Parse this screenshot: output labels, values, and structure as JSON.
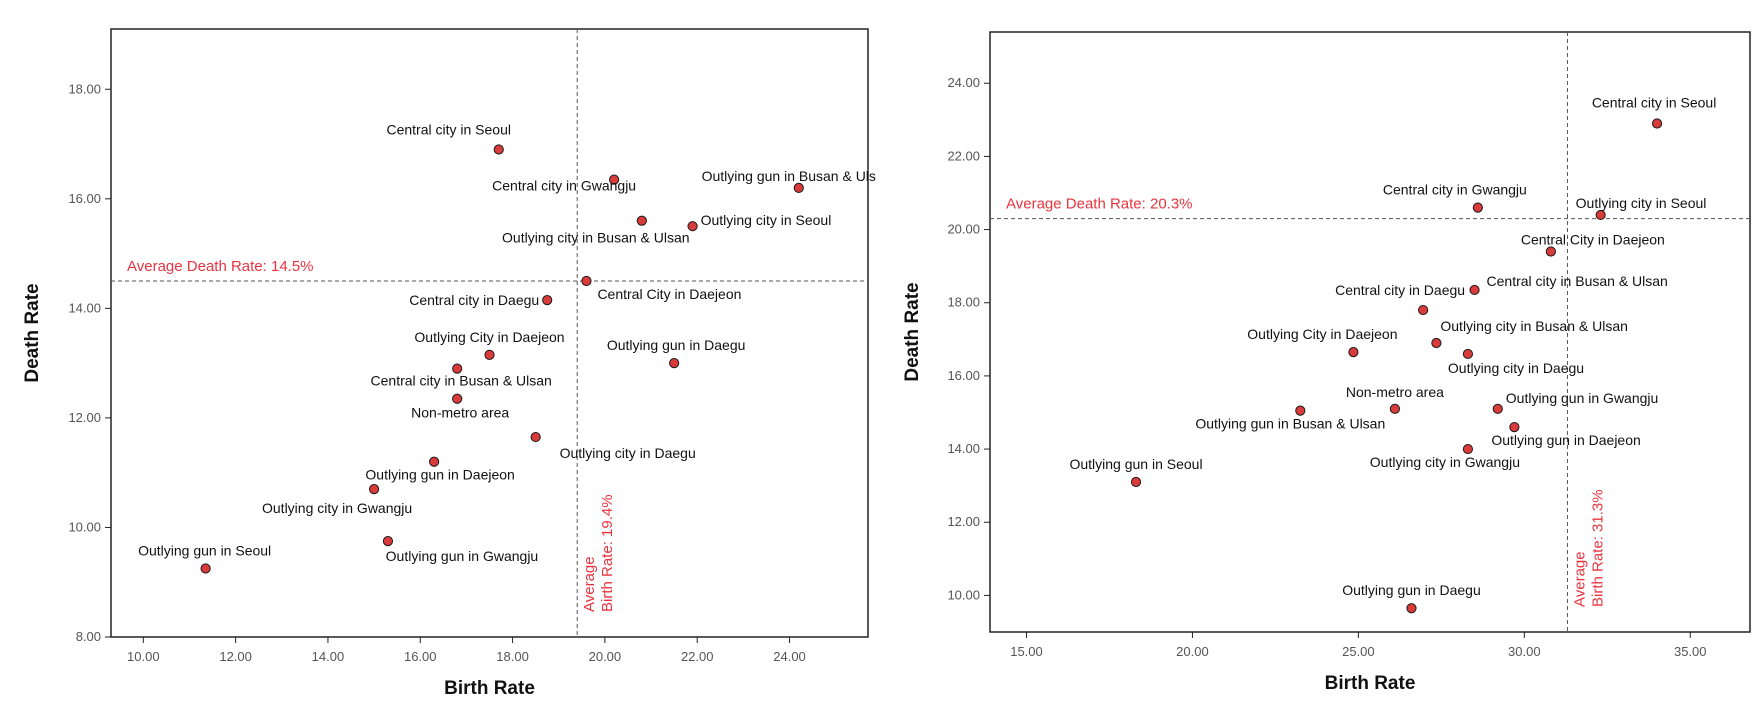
{
  "chart_data": [
    {
      "type": "scatter",
      "xlabel": "Birth Rate",
      "ylabel": "Death Rate",
      "xlim": [
        9.3,
        25.7
      ],
      "ylim": [
        8.0,
        19.1
      ],
      "xticks": [
        10.0,
        12.0,
        14.0,
        16.0,
        18.0,
        20.0,
        22.0,
        24.0
      ],
      "yticks": [
        8.0,
        10.0,
        12.0,
        14.0,
        16.0,
        18.0
      ],
      "tick_format": "0.00",
      "grid": false,
      "marker_color": "#d93a3a",
      "line_color": "#e8343f",
      "ref_x": {
        "value": 19.4,
        "label_line1": "Average",
        "label_line2": "Birth Rate: 19.4%"
      },
      "ref_y": {
        "value": 14.5,
        "label": "Average Death Rate: 14.5%"
      },
      "points": [
        {
          "label": "Central city in Seoul",
          "x": 17.7,
          "y": 16.9,
          "lx": -50,
          "ly": -15,
          "anchor": "middle"
        },
        {
          "label": "Central city in Gwangju",
          "x": 20.2,
          "y": 16.35,
          "lx": -50,
          "ly": 11,
          "anchor": "middle"
        },
        {
          "label": "Outlying gun in Busan & Uls",
          "x": 24.2,
          "y": 16.2,
          "lx": -10,
          "ly": -7,
          "anchor": "middle"
        },
        {
          "label": "Outlying city in Busan & Ulsan",
          "x": 20.8,
          "y": 15.6,
          "lx": -46,
          "ly": 22,
          "anchor": "middle"
        },
        {
          "label": "Outlying city in Seoul",
          "x": 21.9,
          "y": 15.5,
          "lx": 8,
          "ly": -1,
          "anchor": "start"
        },
        {
          "label": "Central City in Daejeon",
          "x": 19.6,
          "y": 14.5,
          "lx": 83,
          "ly": 18,
          "anchor": "middle"
        },
        {
          "label": "Central city in Daegu",
          "x": 18.75,
          "y": 14.15,
          "lx": -8,
          "ly": 5,
          "anchor": "end"
        },
        {
          "label": "Outlying City in Daejeon",
          "x": 17.5,
          "y": 13.15,
          "lx": 0,
          "ly": -13,
          "anchor": "middle"
        },
        {
          "label": "Outlying gun in Daegu",
          "x": 21.5,
          "y": 13.0,
          "lx": 2,
          "ly": -13,
          "anchor": "middle"
        },
        {
          "label": "Central city in Busan & Ulsan",
          "x": 16.8,
          "y": 12.9,
          "lx": 4,
          "ly": 17,
          "anchor": "middle"
        },
        {
          "label": "Non-metro area",
          "x": 16.8,
          "y": 12.35,
          "lx": 3,
          "ly": 19,
          "anchor": "middle"
        },
        {
          "label": "Outlying city in Daegu",
          "x": 18.5,
          "y": 11.65,
          "lx": 92,
          "ly": 21,
          "anchor": "middle"
        },
        {
          "label": "Outlying gun in Daejeon",
          "x": 16.3,
          "y": 11.2,
          "lx": 6,
          "ly": 18,
          "anchor": "middle"
        },
        {
          "label": "Outlying city in Gwangju",
          "x": 15.0,
          "y": 10.7,
          "lx": -37,
          "ly": 24,
          "anchor": "middle"
        },
        {
          "label": "Outlying gun in Seoul",
          "x": 11.35,
          "y": 9.25,
          "lx": -1,
          "ly": -13,
          "anchor": "middle"
        },
        {
          "label": "Outlying gun in Gwangju",
          "x": 15.3,
          "y": 9.75,
          "lx": 74,
          "ly": 20,
          "anchor": "middle"
        }
      ]
    },
    {
      "type": "scatter",
      "xlabel": "Birth Rate",
      "ylabel": "Death Rate",
      "xlim": [
        13.9,
        36.8
      ],
      "ylim": [
        9.0,
        25.4
      ],
      "xticks": [
        15.0,
        20.0,
        25.0,
        30.0,
        35.0
      ],
      "yticks": [
        10.0,
        12.0,
        14.0,
        16.0,
        18.0,
        20.0,
        22.0,
        24.0
      ],
      "tick_format": "0.00",
      "grid": false,
      "marker_color": "#d93a3a",
      "line_color": "#e8343f",
      "ref_x": {
        "value": 31.3,
        "label_line1": "Average",
        "label_line2": "Birth Rate: 31.3%"
      },
      "ref_y": {
        "value": 20.3,
        "label": "Average Death Rate: 20.3%"
      },
      "points": [
        {
          "label": "Central city in Seoul",
          "x": 34.0,
          "y": 22.9,
          "lx": -3,
          "ly": -16,
          "anchor": "middle"
        },
        {
          "label": "Central city in Gwangju",
          "x": 28.6,
          "y": 20.6,
          "lx": -23,
          "ly": -13,
          "anchor": "middle"
        },
        {
          "label": "Outlying city in Seoul",
          "x": 32.3,
          "y": 20.4,
          "lx": -25,
          "ly": -7,
          "anchor": "start"
        },
        {
          "label": "Central City in Daejeon",
          "x": 30.8,
          "y": 19.4,
          "lx": -30,
          "ly": -7,
          "anchor": "start"
        },
        {
          "label": "Central city in Busan & Ulsan",
          "x": 28.5,
          "y": 18.35,
          "lx": 12,
          "ly": -4,
          "anchor": "start"
        },
        {
          "label": "Central city in Daegu",
          "x": 26.95,
          "y": 17.8,
          "lx": -23,
          "ly": -15,
          "anchor": "middle"
        },
        {
          "label": "Outlying city in Busan & Ulsan",
          "x": 27.35,
          "y": 16.9,
          "lx": 4,
          "ly": -12,
          "anchor": "start"
        },
        {
          "label": "Outlying City in Daejeon",
          "x": 24.85,
          "y": 16.65,
          "lx": -31,
          "ly": -13,
          "anchor": "middle"
        },
        {
          "label": "Outlying city in Daegu",
          "x": 28.3,
          "y": 16.6,
          "lx": -20,
          "ly": 19,
          "anchor": "start"
        },
        {
          "label": "Non-metro area",
          "x": 26.1,
          "y": 15.1,
          "lx": 0,
          "ly": -12,
          "anchor": "middle"
        },
        {
          "label": "Outlying gun in Busan & Ulsan",
          "x": 23.25,
          "y": 15.05,
          "lx": -10,
          "ly": 18,
          "anchor": "middle"
        },
        {
          "label": "Outlying gun in Gwangju",
          "x": 29.2,
          "y": 15.1,
          "lx": 8,
          "ly": -6,
          "anchor": "start"
        },
        {
          "label": "Outlying gun in Daejeon",
          "x": 29.7,
          "y": 14.6,
          "lx": -23,
          "ly": 18,
          "anchor": "start"
        },
        {
          "label": "Outlying city in Gwangju",
          "x": 28.3,
          "y": 14.0,
          "lx": -23,
          "ly": 18,
          "anchor": "middle"
        },
        {
          "label": "Outlying gun in Seoul",
          "x": 18.3,
          "y": 13.1,
          "lx": 0,
          "ly": -13,
          "anchor": "middle"
        },
        {
          "label": "Outlying gun in Daegu",
          "x": 26.6,
          "y": 9.65,
          "lx": 0,
          "ly": -13,
          "anchor": "middle"
        }
      ]
    }
  ]
}
